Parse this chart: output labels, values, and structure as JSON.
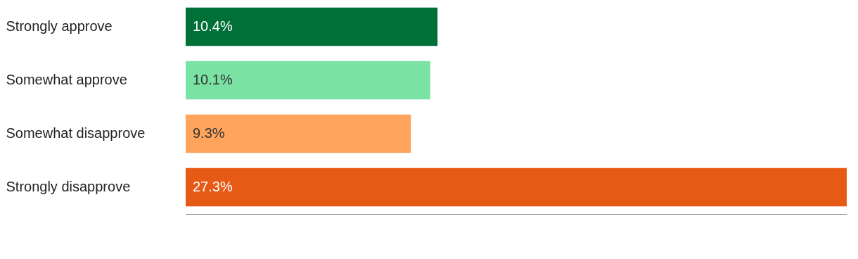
{
  "chart_data": {
    "type": "bar",
    "orientation": "horizontal",
    "relative": false,
    "categories": [
      "Strongly approve",
      "Somewhat approve",
      "Somewhat disapprove",
      "Strongly disapprove"
    ],
    "values": [
      10.4,
      10.1,
      9.3,
      27.3
    ],
    "colors": [
      "#007038",
      "#7ae3a3",
      "#fea45c",
      "#e75a16"
    ],
    "value_labels": [
      "10.4%",
      "10.1%",
      "9.3%",
      "27.3%"
    ]
  }
}
